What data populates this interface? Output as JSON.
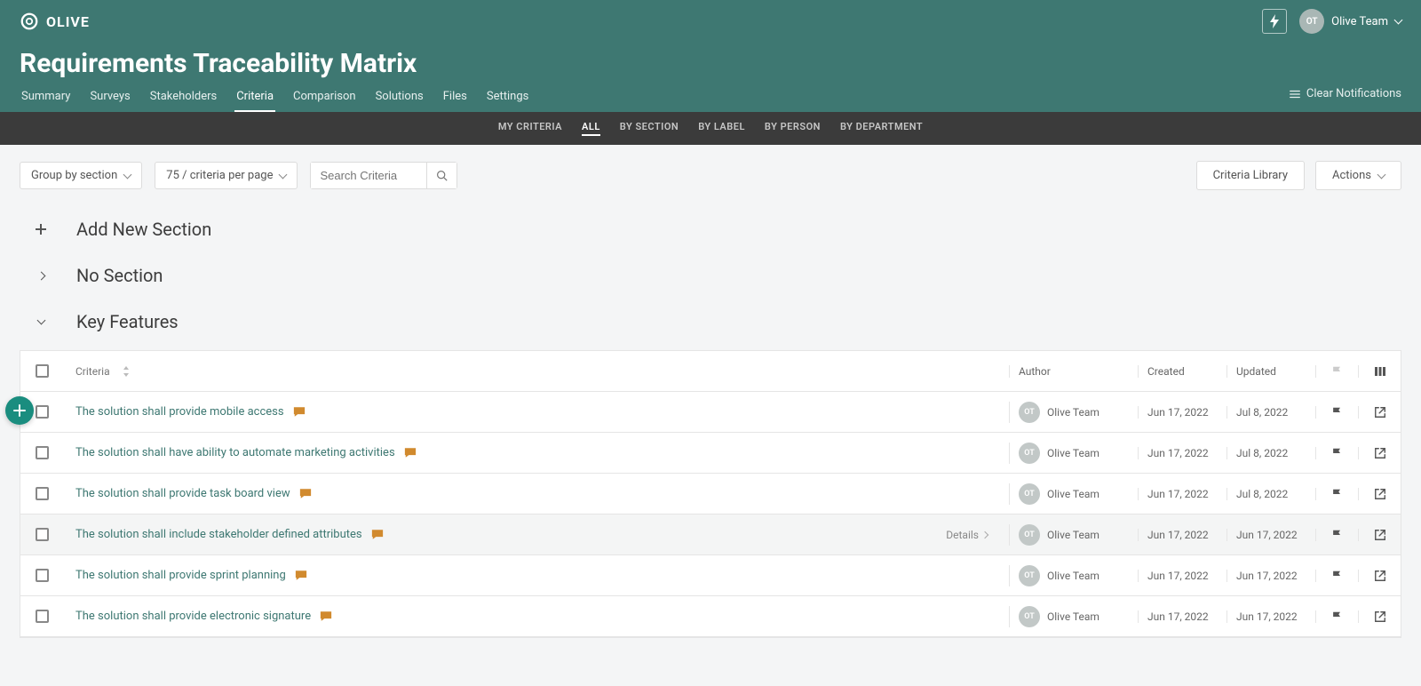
{
  "brand": {
    "name": "OLIVE"
  },
  "user": {
    "initials": "OT",
    "name": "Olive Team"
  },
  "page": {
    "title": "Requirements Traceability Matrix"
  },
  "tabs": {
    "items": [
      {
        "label": "Summary"
      },
      {
        "label": "Surveys"
      },
      {
        "label": "Stakeholders"
      },
      {
        "label": "Criteria",
        "active": true
      },
      {
        "label": "Comparison"
      },
      {
        "label": "Solutions"
      },
      {
        "label": "Files"
      },
      {
        "label": "Settings"
      }
    ],
    "clear_notifications": "Clear Notifications"
  },
  "subtabs": [
    {
      "label": "MY CRITERIA"
    },
    {
      "label": "ALL",
      "active": true
    },
    {
      "label": "BY SECTION"
    },
    {
      "label": "BY LABEL"
    },
    {
      "label": "BY PERSON"
    },
    {
      "label": "BY DEPARTMENT"
    }
  ],
  "toolbar": {
    "group_by": "Group by section",
    "per_page": "75 / criteria per page",
    "search_placeholder": "Search Criteria",
    "criteria_library": "Criteria Library",
    "actions": "Actions"
  },
  "sections": {
    "add_new": "Add New Section",
    "no_section": "No Section",
    "key_features": "Key Features"
  },
  "table": {
    "headers": {
      "criteria": "Criteria",
      "author": "Author",
      "created": "Created",
      "updated": "Updated"
    },
    "details_label": "Details",
    "rows": [
      {
        "title": "The solution shall provide mobile access",
        "author_initials": "OT",
        "author_name": "Olive Team",
        "created": "Jun 17, 2022",
        "updated": "Jul 8, 2022",
        "hovered": false
      },
      {
        "title": "The solution shall have ability to automate marketing activities",
        "author_initials": "OT",
        "author_name": "Olive Team",
        "created": "Jun 17, 2022",
        "updated": "Jul 8, 2022",
        "hovered": false
      },
      {
        "title": "The solution shall provide task board view",
        "author_initials": "OT",
        "author_name": "Olive Team",
        "created": "Jun 17, 2022",
        "updated": "Jul 8, 2022",
        "hovered": false
      },
      {
        "title": "The solution shall include stakeholder defined attributes",
        "author_initials": "OT",
        "author_name": "Olive Team",
        "created": "Jun 17, 2022",
        "updated": "Jun 17, 2022",
        "hovered": true
      },
      {
        "title": "The solution shall provide sprint planning",
        "author_initials": "OT",
        "author_name": "Olive Team",
        "created": "Jun 17, 2022",
        "updated": "Jun 17, 2022",
        "hovered": false
      },
      {
        "title": "The solution shall provide electronic signature",
        "author_initials": "OT",
        "author_name": "Olive Team",
        "created": "Jun 17, 2022",
        "updated": "Jun 17, 2022",
        "hovered": false
      }
    ]
  },
  "colors": {
    "header_bg": "#3e7872",
    "subheader_bg": "#3b3b3b",
    "link": "#3e7872",
    "comment_icon": "#d18a2e",
    "fab": "#1a8d7f"
  }
}
